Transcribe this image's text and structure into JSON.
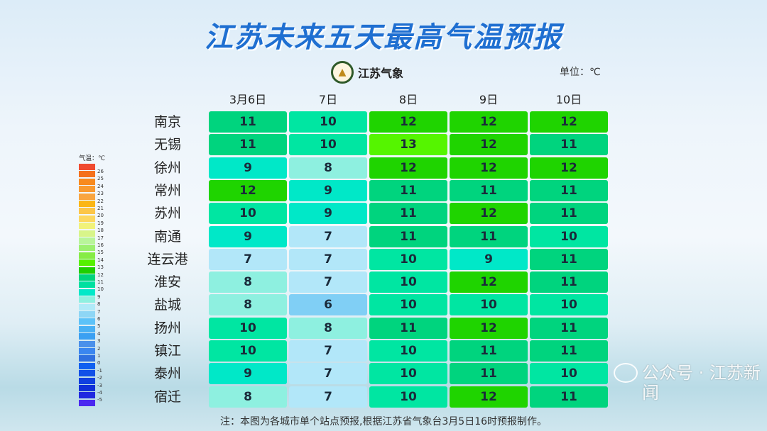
{
  "title": "江苏未来五天最高气温预报",
  "logo_text": "江苏气象",
  "unit": "单位：℃",
  "columns": [
    "3月6日",
    "7日",
    "8日",
    "9日",
    "10日"
  ],
  "rows": [
    {
      "city": "南京",
      "values": [
        11,
        10,
        12,
        12,
        12
      ]
    },
    {
      "city": "无锡",
      "values": [
        11,
        10,
        13,
        12,
        11
      ]
    },
    {
      "city": "徐州",
      "values": [
        9,
        8,
        12,
        12,
        12
      ]
    },
    {
      "city": "常州",
      "values": [
        12,
        9,
        11,
        11,
        11
      ]
    },
    {
      "city": "苏州",
      "values": [
        10,
        9,
        11,
        12,
        11
      ]
    },
    {
      "city": "南通",
      "values": [
        9,
        7,
        11,
        11,
        10
      ]
    },
    {
      "city": "连云港",
      "values": [
        7,
        7,
        10,
        9,
        11
      ]
    },
    {
      "city": "淮安",
      "values": [
        8,
        7,
        10,
        12,
        11
      ]
    },
    {
      "city": "盐城",
      "values": [
        8,
        6,
        10,
        10,
        10
      ]
    },
    {
      "city": "扬州",
      "values": [
        10,
        8,
        11,
        12,
        11
      ]
    },
    {
      "city": "镇江",
      "values": [
        10,
        7,
        10,
        11,
        11
      ]
    },
    {
      "city": "泰州",
      "values": [
        9,
        7,
        10,
        11,
        10
      ]
    },
    {
      "city": "宿迁",
      "values": [
        8,
        7,
        10,
        12,
        11
      ]
    }
  ],
  "legend": {
    "title": "气温：℃",
    "labels": [
      "26",
      "25",
      "24",
      "23",
      "22",
      "21",
      "20",
      "19",
      "18",
      "17",
      "16",
      "15",
      "14",
      "13",
      "12",
      "11",
      "10",
      "9",
      "8",
      "7",
      "6",
      "5",
      "4",
      "3",
      "2",
      "1",
      "0",
      "-1",
      "-2",
      "-3",
      "-4",
      "-5"
    ],
    "colors": [
      "#f04a30",
      "#f4701c",
      "#f88a1e",
      "#f99a30",
      "#f9a540",
      "#fbb614",
      "#fcc648",
      "#fcd860",
      "#f1f27a",
      "#d8f58a",
      "#b8f59a",
      "#9cf070",
      "#86ec46",
      "#55f000",
      "#1ecf00",
      "#00d47c",
      "#00e0a0",
      "#00e8c8",
      "#8ef0e0",
      "#b0eaf8",
      "#8ed6f5",
      "#5cc2f8",
      "#48b0f4",
      "#3aa0f2",
      "#4a90ea",
      "#3a86f0",
      "#2f70e0",
      "#1060f0",
      "#1050e8",
      "#1040e0",
      "#1030d8",
      "#2028e0",
      "#4a28f0"
    ],
    "value_colors": {
      "6": "#80cff5",
      "7": "#b2e7f9",
      "8": "#8ef0e0",
      "9": "#00e8c8",
      "10": "#00e6a2",
      "11": "#00d47e",
      "12": "#1fd400",
      "13": "#55f500"
    }
  },
  "footnote": "注：本图为各城市单个站点预报,根据江苏省气象台3月5日16时预报制作。",
  "watermark": "公众号 · 江苏新闻"
}
